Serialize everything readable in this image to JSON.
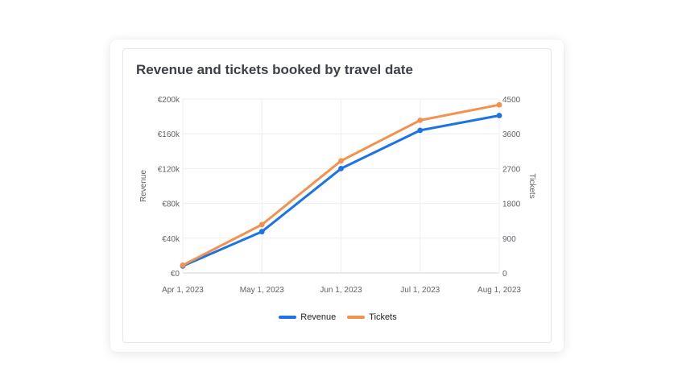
{
  "card": {
    "title": "Revenue and tickets booked by travel date"
  },
  "chart_data": {
    "type": "line",
    "title": "Revenue and tickets booked by travel date",
    "categories": [
      "Apr 1, 2023",
      "May 1, 2023",
      "Jun 1, 2023",
      "Jul 1, 2023",
      "Aug 1, 2023"
    ],
    "series": [
      {
        "name": "Revenue",
        "axis": "left",
        "color": "#1a73e8",
        "values": [
          8000,
          47500,
          120000,
          164000,
          181000
        ]
      },
      {
        "name": "Tickets",
        "axis": "right",
        "color": "#f4914e",
        "values": [
          200,
          1250,
          2900,
          3950,
          4350
        ]
      }
    ],
    "y_left": {
      "label": "Revenue",
      "ylim": [
        0,
        200000
      ],
      "ticks": [
        0,
        40000,
        80000,
        120000,
        160000,
        200000
      ],
      "tick_labels": [
        "€0",
        "€40k",
        "€80k",
        "€120k",
        "€160k",
        "€200k"
      ]
    },
    "y_right": {
      "label": "Tickets",
      "ylim": [
        0,
        4500
      ],
      "ticks": [
        0,
        900,
        1800,
        2700,
        3600,
        4500
      ],
      "tick_labels": [
        "0",
        "900",
        "1800",
        "2700",
        "3600",
        "4500"
      ]
    },
    "grid": true,
    "legend_position": "bottom"
  }
}
